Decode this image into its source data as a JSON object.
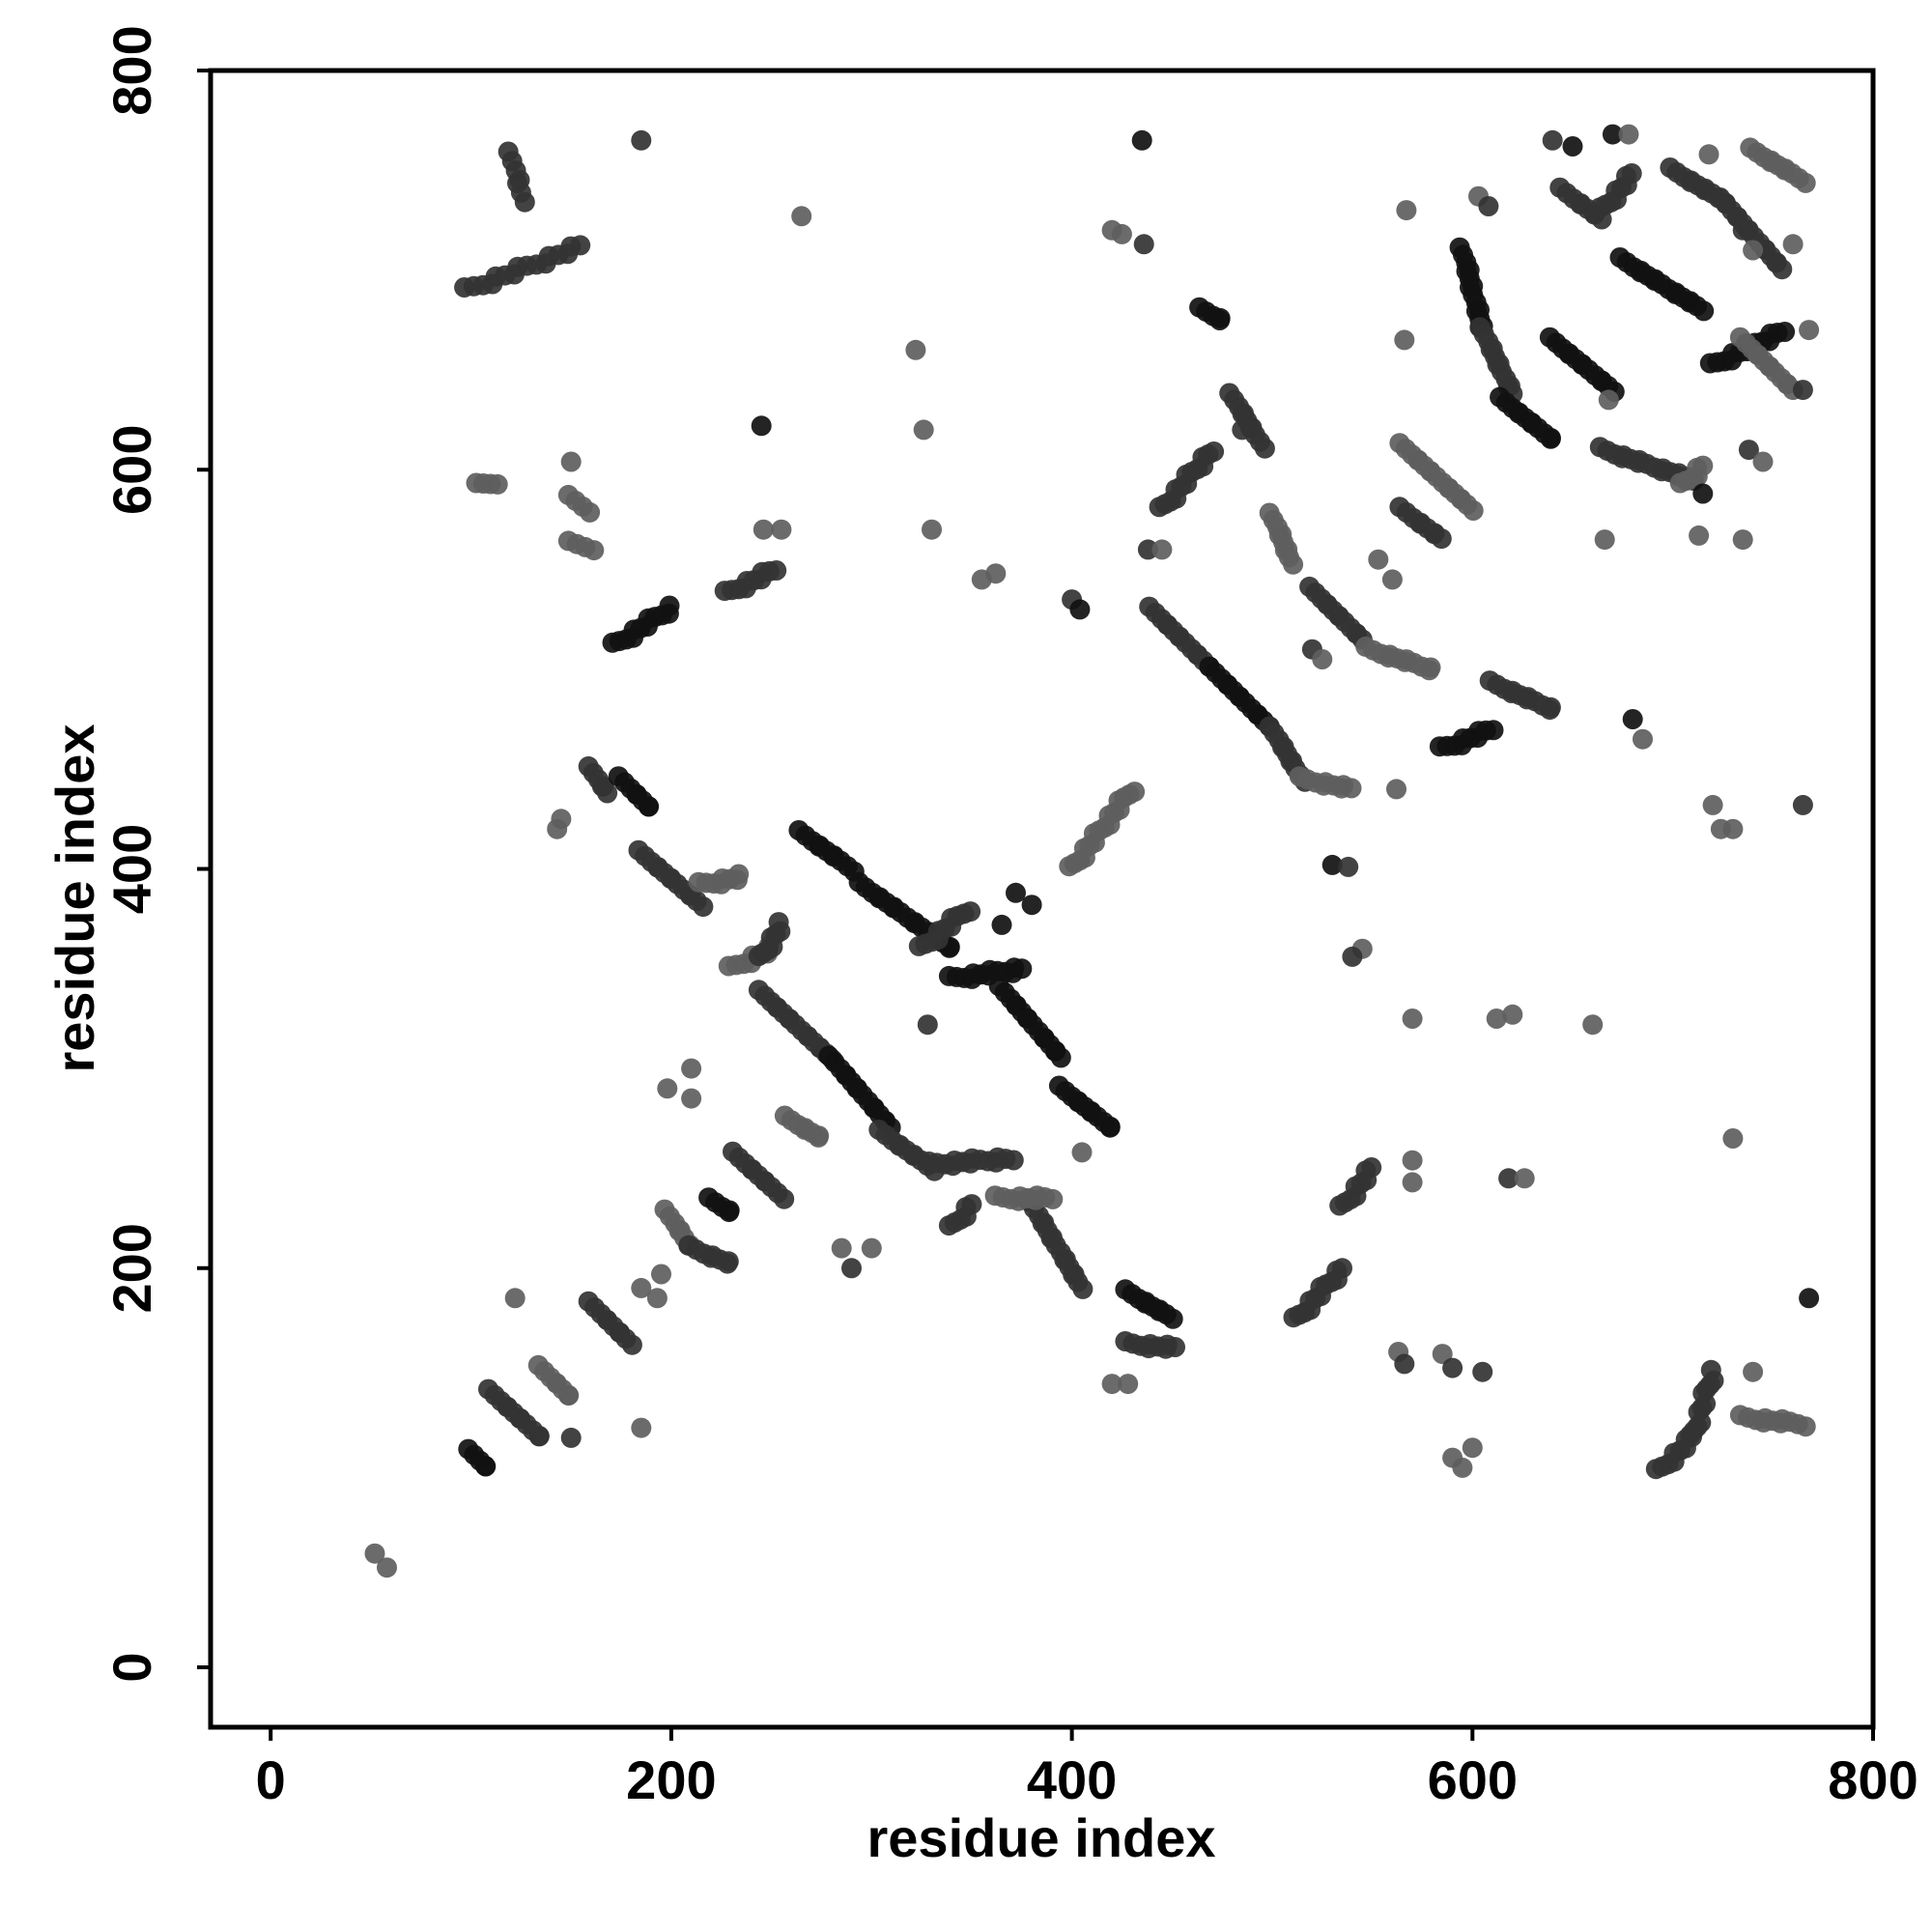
{
  "chart_data": {
    "type": "scatter",
    "title": "",
    "xlabel": "residue index",
    "ylabel": "residue index",
    "xlim": [
      -30,
      800
    ],
    "ylim": [
      -30,
      800
    ],
    "xticks": [
      "0",
      "200",
      "400",
      "600",
      "800"
    ],
    "yticks": [
      "0",
      "200",
      "400",
      "600",
      "800"
    ],
    "grid": false,
    "legend": "none",
    "colors": {
      "dark": "#111111",
      "mid": "#333333",
      "light": "#5e5e5e"
    },
    "strands": [
      {
        "x1": 98,
        "y1": 690,
        "x2": 155,
        "y2": 712,
        "step": 4,
        "shade": "mid"
      },
      {
        "x1": 120,
        "y1": 758,
        "x2": 126,
        "y2": 735,
        "step": 4,
        "shade": "mid"
      },
      {
        "x1": 172,
        "y1": 512,
        "x2": 200,
        "y2": 531,
        "step": 3,
        "shade": "dark"
      },
      {
        "x1": 228,
        "y1": 538,
        "x2": 252,
        "y2": 550,
        "step": 3,
        "shade": "mid"
      },
      {
        "x1": 104,
        "y1": 592,
        "x2": 112,
        "y2": 594,
        "step": 3,
        "shade": "light"
      },
      {
        "x1": 150,
        "y1": 586,
        "x2": 158,
        "y2": 580,
        "step": 3,
        "shade": "light"
      },
      {
        "x1": 150,
        "y1": 563,
        "x2": 160,
        "y2": 561,
        "step": 3,
        "shade": "light"
      },
      {
        "x1": 160,
        "y1": 450,
        "x2": 168,
        "y2": 438,
        "step": 3,
        "shade": "mid"
      },
      {
        "x1": 175,
        "y1": 445,
        "x2": 190,
        "y2": 430,
        "step": 3,
        "shade": "dark"
      },
      {
        "x1": 185,
        "y1": 408,
        "x2": 215,
        "y2": 382,
        "step": 3,
        "shade": "mid"
      },
      {
        "x1": 215,
        "y1": 392,
        "x2": 235,
        "y2": 396,
        "step": 3,
        "shade": "light"
      },
      {
        "x1": 230,
        "y1": 350,
        "x2": 250,
        "y2": 360,
        "step": 3,
        "shade": "light"
      },
      {
        "x1": 245,
        "y1": 355,
        "x2": 255,
        "y2": 372,
        "step": 3,
        "shade": "mid"
      },
      {
        "x1": 265,
        "y1": 418,
        "x2": 290,
        "y2": 400,
        "step": 3,
        "shade": "dark"
      },
      {
        "x1": 295,
        "y1": 392,
        "x2": 340,
        "y2": 360,
        "step": 3,
        "shade": "dark"
      },
      {
        "x1": 325,
        "y1": 360,
        "x2": 348,
        "y2": 380,
        "step": 3,
        "shade": "mid"
      },
      {
        "x1": 340,
        "y1": 345,
        "x2": 375,
        "y2": 350,
        "step": 3,
        "shade": "dark"
      },
      {
        "x1": 365,
        "y1": 340,
        "x2": 395,
        "y2": 305,
        "step": 3,
        "shade": "dark"
      },
      {
        "x1": 395,
        "y1": 290,
        "x2": 420,
        "y2": 270,
        "step": 3,
        "shade": "dark"
      },
      {
        "x1": 245,
        "y1": 338,
        "x2": 280,
        "y2": 305,
        "step": 3,
        "shade": "mid"
      },
      {
        "x1": 280,
        "y1": 305,
        "x2": 310,
        "y2": 270,
        "step": 3,
        "shade": "dark"
      },
      {
        "x1": 305,
        "y1": 268,
        "x2": 330,
        "y2": 250,
        "step": 3,
        "shade": "mid"
      },
      {
        "x1": 330,
        "y1": 252,
        "x2": 370,
        "y2": 255,
        "step": 3,
        "shade": "mid"
      },
      {
        "x1": 258,
        "y1": 275,
        "x2": 275,
        "y2": 265,
        "step": 3,
        "shade": "light"
      },
      {
        "x1": 232,
        "y1": 257,
        "x2": 255,
        "y2": 236,
        "step": 3,
        "shade": "mid"
      },
      {
        "x1": 220,
        "y1": 234,
        "x2": 230,
        "y2": 228,
        "step": 3,
        "shade": "dark"
      },
      {
        "x1": 198,
        "y1": 228,
        "x2": 210,
        "y2": 210,
        "step": 3,
        "shade": "light"
      },
      {
        "x1": 210,
        "y1": 210,
        "x2": 230,
        "y2": 202,
        "step": 3,
        "shade": "mid"
      },
      {
        "x1": 380,
        "y1": 232,
        "x2": 405,
        "y2": 190,
        "step": 3,
        "shade": "mid"
      },
      {
        "x1": 340,
        "y1": 220,
        "x2": 350,
        "y2": 232,
        "step": 3,
        "shade": "mid"
      },
      {
        "x1": 363,
        "y1": 235,
        "x2": 390,
        "y2": 235,
        "step": 3,
        "shade": "light"
      },
      {
        "x1": 160,
        "y1": 182,
        "x2": 180,
        "y2": 162,
        "step": 3,
        "shade": "mid"
      },
      {
        "x1": 110,
        "y1": 138,
        "x2": 135,
        "y2": 115,
        "step": 3,
        "shade": "mid"
      },
      {
        "x1": 135,
        "y1": 150,
        "x2": 150,
        "y2": 135,
        "step": 3,
        "shade": "light"
      },
      {
        "x1": 100,
        "y1": 108,
        "x2": 108,
        "y2": 100,
        "step": 3,
        "shade": "dark"
      },
      {
        "x1": 428,
        "y1": 188,
        "x2": 450,
        "y2": 175,
        "step": 3,
        "shade": "dark"
      },
      {
        "x1": 428,
        "y1": 162,
        "x2": 452,
        "y2": 160,
        "step": 3,
        "shade": "mid"
      },
      {
        "x1": 512,
        "y1": 174,
        "x2": 535,
        "y2": 200,
        "step": 3,
        "shade": "mid"
      },
      {
        "x1": 535,
        "y1": 230,
        "x2": 550,
        "y2": 250,
        "step": 3,
        "shade": "mid"
      },
      {
        "x1": 400,
        "y1": 400,
        "x2": 430,
        "y2": 440,
        "step": 3,
        "shade": "light"
      },
      {
        "x1": 440,
        "y1": 530,
        "x2": 470,
        "y2": 500,
        "step": 3,
        "shade": "mid"
      },
      {
        "x1": 470,
        "y1": 500,
        "x2": 500,
        "y2": 470,
        "step": 3,
        "shade": "dark"
      },
      {
        "x1": 500,
        "y1": 470,
        "x2": 515,
        "y2": 445,
        "step": 3,
        "shade": "mid"
      },
      {
        "x1": 515,
        "y1": 445,
        "x2": 540,
        "y2": 440,
        "step": 3,
        "shade": "light"
      },
      {
        "x1": 445,
        "y1": 580,
        "x2": 470,
        "y2": 610,
        "step": 3,
        "shade": "mid"
      },
      {
        "x1": 480,
        "y1": 637,
        "x2": 495,
        "y2": 612,
        "step": 3,
        "shade": "mid"
      },
      {
        "x1": 465,
        "y1": 680,
        "x2": 475,
        "y2": 675,
        "step": 3,
        "shade": "dark"
      },
      {
        "x1": 500,
        "y1": 577,
        "x2": 510,
        "y2": 553,
        "step": 3,
        "shade": "light"
      },
      {
        "x1": 520,
        "y1": 540,
        "x2": 545,
        "y2": 515,
        "step": 3,
        "shade": "mid"
      },
      {
        "x1": 548,
        "y1": 510,
        "x2": 580,
        "y2": 500,
        "step": 3,
        "shade": "light"
      },
      {
        "x1": 565,
        "y1": 580,
        "x2": 585,
        "y2": 565,
        "step": 3,
        "shade": "mid"
      },
      {
        "x1": 565,
        "y1": 612,
        "x2": 600,
        "y2": 580,
        "step": 3,
        "shade": "light"
      },
      {
        "x1": 585,
        "y1": 460,
        "x2": 610,
        "y2": 470,
        "step": 3,
        "shade": "dark"
      },
      {
        "x1": 610,
        "y1": 493,
        "x2": 640,
        "y2": 480,
        "step": 3,
        "shade": "mid"
      },
      {
        "x1": 595,
        "y1": 710,
        "x2": 605,
        "y2": 670,
        "step": 3,
        "shade": "dark"
      },
      {
        "x1": 605,
        "y1": 670,
        "x2": 620,
        "y2": 638,
        "step": 3,
        "shade": "mid"
      },
      {
        "x1": 615,
        "y1": 635,
        "x2": 640,
        "y2": 615,
        "step": 3,
        "shade": "dark"
      },
      {
        "x1": 640,
        "y1": 665,
        "x2": 670,
        "y2": 640,
        "step": 3,
        "shade": "dark"
      },
      {
        "x1": 665,
        "y1": 610,
        "x2": 710,
        "y2": 595,
        "step": 3,
        "shade": "mid"
      },
      {
        "x1": 705,
        "y1": 592,
        "x2": 715,
        "y2": 602,
        "step": 3,
        "shade": "light"
      },
      {
        "x1": 645,
        "y1": 740,
        "x2": 665,
        "y2": 725,
        "step": 3,
        "shade": "mid"
      },
      {
        "x1": 665,
        "y1": 730,
        "x2": 680,
        "y2": 748,
        "step": 3,
        "shade": "mid"
      },
      {
        "x1": 675,
        "y1": 705,
        "x2": 715,
        "y2": 680,
        "step": 3,
        "shade": "dark"
      },
      {
        "x1": 700,
        "y1": 750,
        "x2": 725,
        "y2": 735,
        "step": 3,
        "shade": "mid"
      },
      {
        "x1": 725,
        "y1": 735,
        "x2": 755,
        "y2": 700,
        "step": 3,
        "shade": "mid"
      },
      {
        "x1": 720,
        "y1": 652,
        "x2": 755,
        "y2": 670,
        "step": 3,
        "shade": "dark"
      },
      {
        "x1": 735,
        "y1": 665,
        "x2": 760,
        "y2": 640,
        "step": 3,
        "shade": "light"
      },
      {
        "x1": 740,
        "y1": 760,
        "x2": 765,
        "y2": 745,
        "step": 3,
        "shade": "light"
      },
      {
        "x1": 693,
        "y1": 98,
        "x2": 710,
        "y2": 115,
        "step": 3,
        "shade": "mid"
      },
      {
        "x1": 710,
        "y1": 115,
        "x2": 720,
        "y2": 148,
        "step": 3,
        "shade": "mid"
      },
      {
        "x1": 735,
        "y1": 125,
        "x2": 765,
        "y2": 122,
        "step": 3,
        "shade": "light"
      }
    ],
    "points": [
      [
        185,
        765,
        "mid"
      ],
      [
        435,
        765,
        "dark"
      ],
      [
        265,
        727,
        "light"
      ],
      [
        322,
        660,
        "light"
      ],
      [
        326,
        620,
        "light"
      ],
      [
        245,
        622,
        "dark"
      ],
      [
        246,
        570,
        "light"
      ],
      [
        255,
        570,
        "light"
      ],
      [
        150,
        604,
        "light"
      ],
      [
        145,
        425,
        "light"
      ],
      [
        143,
        420,
        "light"
      ],
      [
        185,
        120,
        "light"
      ],
      [
        122,
        185,
        "light"
      ],
      [
        150,
        115,
        "mid"
      ],
      [
        52,
        57,
        "light"
      ],
      [
        58,
        50,
        "light"
      ],
      [
        198,
        290,
        "light"
      ],
      [
        210,
        300,
        "light"
      ],
      [
        210,
        285,
        "light"
      ],
      [
        195,
        197,
        "light"
      ],
      [
        185,
        190,
        "light"
      ],
      [
        193,
        185,
        "light"
      ],
      [
        285,
        210,
        "light"
      ],
      [
        290,
        200,
        "mid"
      ],
      [
        300,
        210,
        "light"
      ],
      [
        330,
        570,
        "light"
      ],
      [
        355,
        545,
        "light"
      ],
      [
        362,
        548,
        "light"
      ],
      [
        400,
        535,
        "mid"
      ],
      [
        404,
        530,
        "dark"
      ],
      [
        420,
        720,
        "light"
      ],
      [
        425,
        718,
        "light"
      ],
      [
        436,
        713,
        "mid"
      ],
      [
        438,
        560,
        "mid"
      ],
      [
        445,
        560,
        "light"
      ],
      [
        372,
        388,
        "dark"
      ],
      [
        380,
        382,
        "dark"
      ],
      [
        365,
        372,
        "dark"
      ],
      [
        328,
        322,
        "mid"
      ],
      [
        405,
        258,
        "light"
      ],
      [
        420,
        142,
        "light"
      ],
      [
        428,
        142,
        "light"
      ],
      [
        485,
        620,
        "mid"
      ],
      [
        520,
        510,
        "mid"
      ],
      [
        525,
        505,
        "light"
      ],
      [
        530,
        402,
        "dark"
      ],
      [
        538,
        401,
        "mid"
      ],
      [
        545,
        360,
        "light"
      ],
      [
        540,
        356,
        "mid"
      ],
      [
        567,
        730,
        "light"
      ],
      [
        566,
        665,
        "light"
      ],
      [
        553,
        555,
        "light"
      ],
      [
        560,
        545,
        "light"
      ],
      [
        562,
        440,
        "light"
      ],
      [
        570,
        325,
        "light"
      ],
      [
        570,
        254,
        "light"
      ],
      [
        570,
        243,
        "light"
      ],
      [
        563,
        158,
        "light"
      ],
      [
        566,
        152,
        "mid"
      ],
      [
        585,
        157,
        "light"
      ],
      [
        590,
        150,
        "mid"
      ],
      [
        605,
        148,
        "mid"
      ],
      [
        590,
        105,
        "light"
      ],
      [
        595,
        100,
        "light"
      ],
      [
        600,
        110,
        "light"
      ],
      [
        612,
        325,
        "light"
      ],
      [
        620,
        327,
        "light"
      ],
      [
        618,
        245,
        "mid"
      ],
      [
        626,
        245,
        "light"
      ],
      [
        603,
        737,
        "light"
      ],
      [
        608,
        732,
        "mid"
      ],
      [
        660,
        322,
        "light"
      ],
      [
        666,
        565,
        "light"
      ],
      [
        668,
        635,
        "light"
      ],
      [
        680,
        475,
        "dark"
      ],
      [
        685,
        465,
        "light"
      ],
      [
        720,
        432,
        "light"
      ],
      [
        724,
        420,
        "light"
      ],
      [
        730,
        420,
        "light"
      ],
      [
        730,
        265,
        "light"
      ],
      [
        740,
        148,
        "light"
      ],
      [
        735,
        565,
        "light"
      ],
      [
        738,
        610,
        "mid"
      ],
      [
        745,
        604,
        "light"
      ],
      [
        765,
        432,
        "mid"
      ],
      [
        768,
        185,
        "dark"
      ],
      [
        765,
        640,
        "mid"
      ],
      [
        768,
        670,
        "light"
      ],
      [
        735,
        720,
        "mid"
      ],
      [
        740,
        710,
        "light"
      ],
      [
        640,
        765,
        "mid"
      ],
      [
        650,
        762,
        "dark"
      ],
      [
        670,
        768,
        "dark"
      ],
      [
        678,
        768,
        "light"
      ],
      [
        718,
        758,
        "light"
      ],
      [
        715,
        588,
        "dark"
      ],
      [
        713,
        567,
        "light"
      ],
      [
        760,
        713,
        "light"
      ]
    ]
  }
}
